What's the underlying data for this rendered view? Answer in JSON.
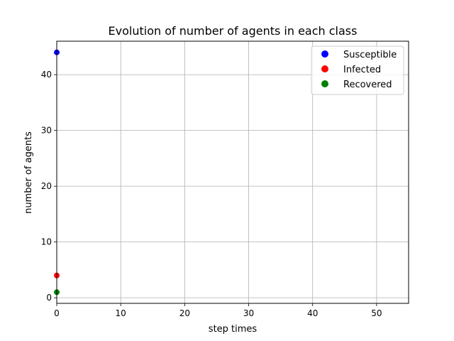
{
  "chart_data": {
    "type": "scatter",
    "title": "Evolution of number of agents in each class",
    "xlabel": "step times",
    "ylabel": "number of agents",
    "xlim": [
      0,
      55
    ],
    "ylim": [
      -1,
      46
    ],
    "xticks": [
      0,
      10,
      20,
      30,
      40,
      50
    ],
    "yticks": [
      0,
      10,
      20,
      30,
      40
    ],
    "grid": true,
    "legend_position": "top-right",
    "series": [
      {
        "name": "Susceptible",
        "color": "#0000ff",
        "points": [
          {
            "x": 0,
            "y": 44
          }
        ]
      },
      {
        "name": "Infected",
        "color": "#ff0000",
        "points": [
          {
            "x": 0,
            "y": 4
          }
        ]
      },
      {
        "name": "Recovered",
        "color": "#008000",
        "points": [
          {
            "x": 0,
            "y": 1
          }
        ]
      }
    ]
  }
}
